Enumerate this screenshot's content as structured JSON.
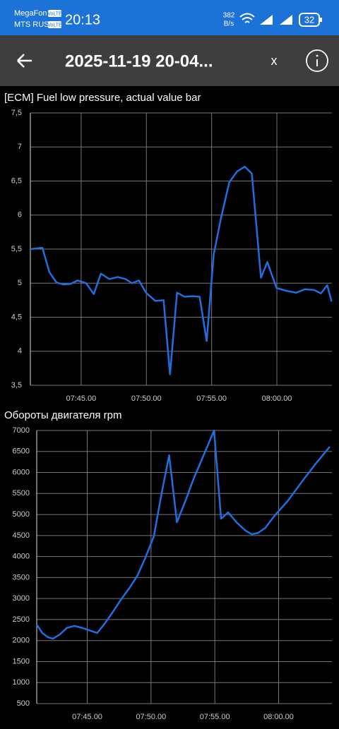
{
  "status_bar": {
    "carrier_1": "MegaFon",
    "carrier_2": "MTS RUS",
    "badge_1": "VoLTE",
    "badge_2": "VoLTE",
    "time": "20:13",
    "speed": "382",
    "speed_unit": "B/s",
    "battery": "32"
  },
  "app_bar": {
    "title": "2025-11-19 20-04...",
    "close": "x"
  },
  "chart_data": [
    {
      "type": "line",
      "title": "[ECM] Fuel low pressure, actual value  bar",
      "color": "#1f6fe0",
      "grid": true,
      "x": [
        461.11,
        462.03,
        462.57,
        463.11,
        463.65,
        464.19,
        464.73,
        465.38,
        465.97,
        466.51,
        467.16,
        467.81,
        468.41,
        468.89,
        469.43,
        469.97,
        470.68,
        471.32,
        471.81,
        472.35,
        472.95,
        473.54,
        474.08,
        474.62,
        475.16,
        475.7,
        476.35,
        476.95,
        477.54,
        478.08,
        478.78,
        479.27,
        479.97,
        480.68,
        481.49,
        482.14,
        482.84,
        483.38,
        483.86,
        484.19
      ],
      "values": [
        5.5,
        5.52,
        5.16,
        5.01,
        4.98,
        4.99,
        5.04,
        5.0,
        4.84,
        5.14,
        5.06,
        5.09,
        5.06,
        5.0,
        5.04,
        4.86,
        4.74,
        4.75,
        3.66,
        4.86,
        4.8,
        4.81,
        4.8,
        4.15,
        5.42,
        5.94,
        6.48,
        6.64,
        6.71,
        6.61,
        5.08,
        5.31,
        4.93,
        4.89,
        4.86,
        4.91,
        4.9,
        4.85,
        4.97,
        4.73
      ],
      "xlim": [
        461.11,
        484.22
      ],
      "xticks": [
        {
          "value": 465,
          "label": "07:45.00"
        },
        {
          "value": 470,
          "label": "07:50.00"
        },
        {
          "value": 475,
          "label": "07:55.00"
        },
        {
          "value": 480,
          "label": "08:00.00"
        }
      ],
      "ylim": [
        3.5,
        7.5
      ],
      "yticks": [
        {
          "value": 3.5,
          "label": "3,5"
        },
        4,
        {
          "value": 4.5,
          "label": "4,5"
        },
        5,
        {
          "value": 5.5,
          "label": "5,5"
        },
        6,
        {
          "value": 6.5,
          "label": "6,5"
        },
        7,
        {
          "value": 7.5,
          "label": "7,5"
        }
      ]
    },
    {
      "type": "line",
      "title": "Обороты двигателя  rpm",
      "color": "#1f6fe0",
      "grid": true,
      "x": [
        461.04,
        461.48,
        461.92,
        462.3,
        462.85,
        463.4,
        464.01,
        464.61,
        465.16,
        465.77,
        466.31,
        466.97,
        467.63,
        468.35,
        468.95,
        469.56,
        470.22,
        470.82,
        471.42,
        472.03,
        472.69,
        473.35,
        474.12,
        474.94,
        475.49,
        476.04,
        476.7,
        477.41,
        477.91,
        478.4,
        478.95,
        479.72,
        480.71,
        481.81,
        482.91,
        484.01
      ],
      "values": [
        2380,
        2180,
        2080,
        2045,
        2145,
        2300,
        2350,
        2300,
        2245,
        2180,
        2380,
        2665,
        2970,
        3270,
        3555,
        3975,
        4480,
        5490,
        6410,
        4815,
        5320,
        5860,
        6410,
        7000,
        4900,
        5050,
        4815,
        4615,
        4530,
        4565,
        4680,
        4985,
        5320,
        5775,
        6210,
        6615
      ],
      "xlim": [
        461.04,
        484.18
      ],
      "xticks": [
        {
          "value": 465,
          "label": "07:45.00"
        },
        {
          "value": 470,
          "label": "07:50.00"
        },
        {
          "value": 475,
          "label": "07:55.00"
        },
        {
          "value": 480,
          "label": "08:00.00"
        }
      ],
      "ylim": [
        500,
        7000
      ],
      "yticks": [
        500,
        1000,
        1500,
        2000,
        2500,
        3000,
        3500,
        4000,
        4500,
        5000,
        5500,
        6000,
        6500,
        7000
      ]
    }
  ]
}
